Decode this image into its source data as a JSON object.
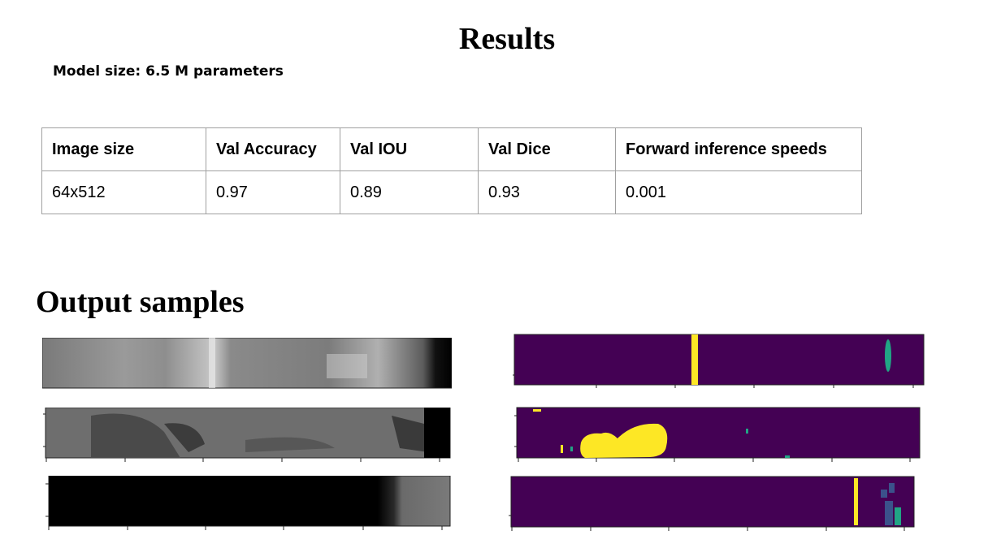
{
  "page": {
    "title": "Results",
    "model_size": "Model size: 6.5 M parameters",
    "samples_heading": "Output samples"
  },
  "results_table": {
    "headers": [
      "Image size",
      "Val Accuracy",
      "Val IOU",
      "Val Dice",
      "Forward inference speeds"
    ],
    "rows": [
      [
        "64x512",
        "0.97",
        "0.89",
        "0.93",
        "0.001"
      ]
    ]
  },
  "samples": [
    {
      "input": "grayscale steel surface strip",
      "mask": "segmentation mask with yellow vertical defect and teal spot"
    },
    {
      "input": "grayscale steel surface strip with dark patches",
      "mask": "segmentation mask with large yellow blob"
    },
    {
      "input": "mostly black strip with textured right end",
      "mask": "segmentation mask with yellow and teal regions at right"
    }
  ],
  "colors": {
    "mask_background": "#440154",
    "mask_class_yellow": "#fde725",
    "mask_class_teal": "#21a585",
    "mask_class_blue": "#3b528b",
    "table_border": "#a0a0a0"
  }
}
